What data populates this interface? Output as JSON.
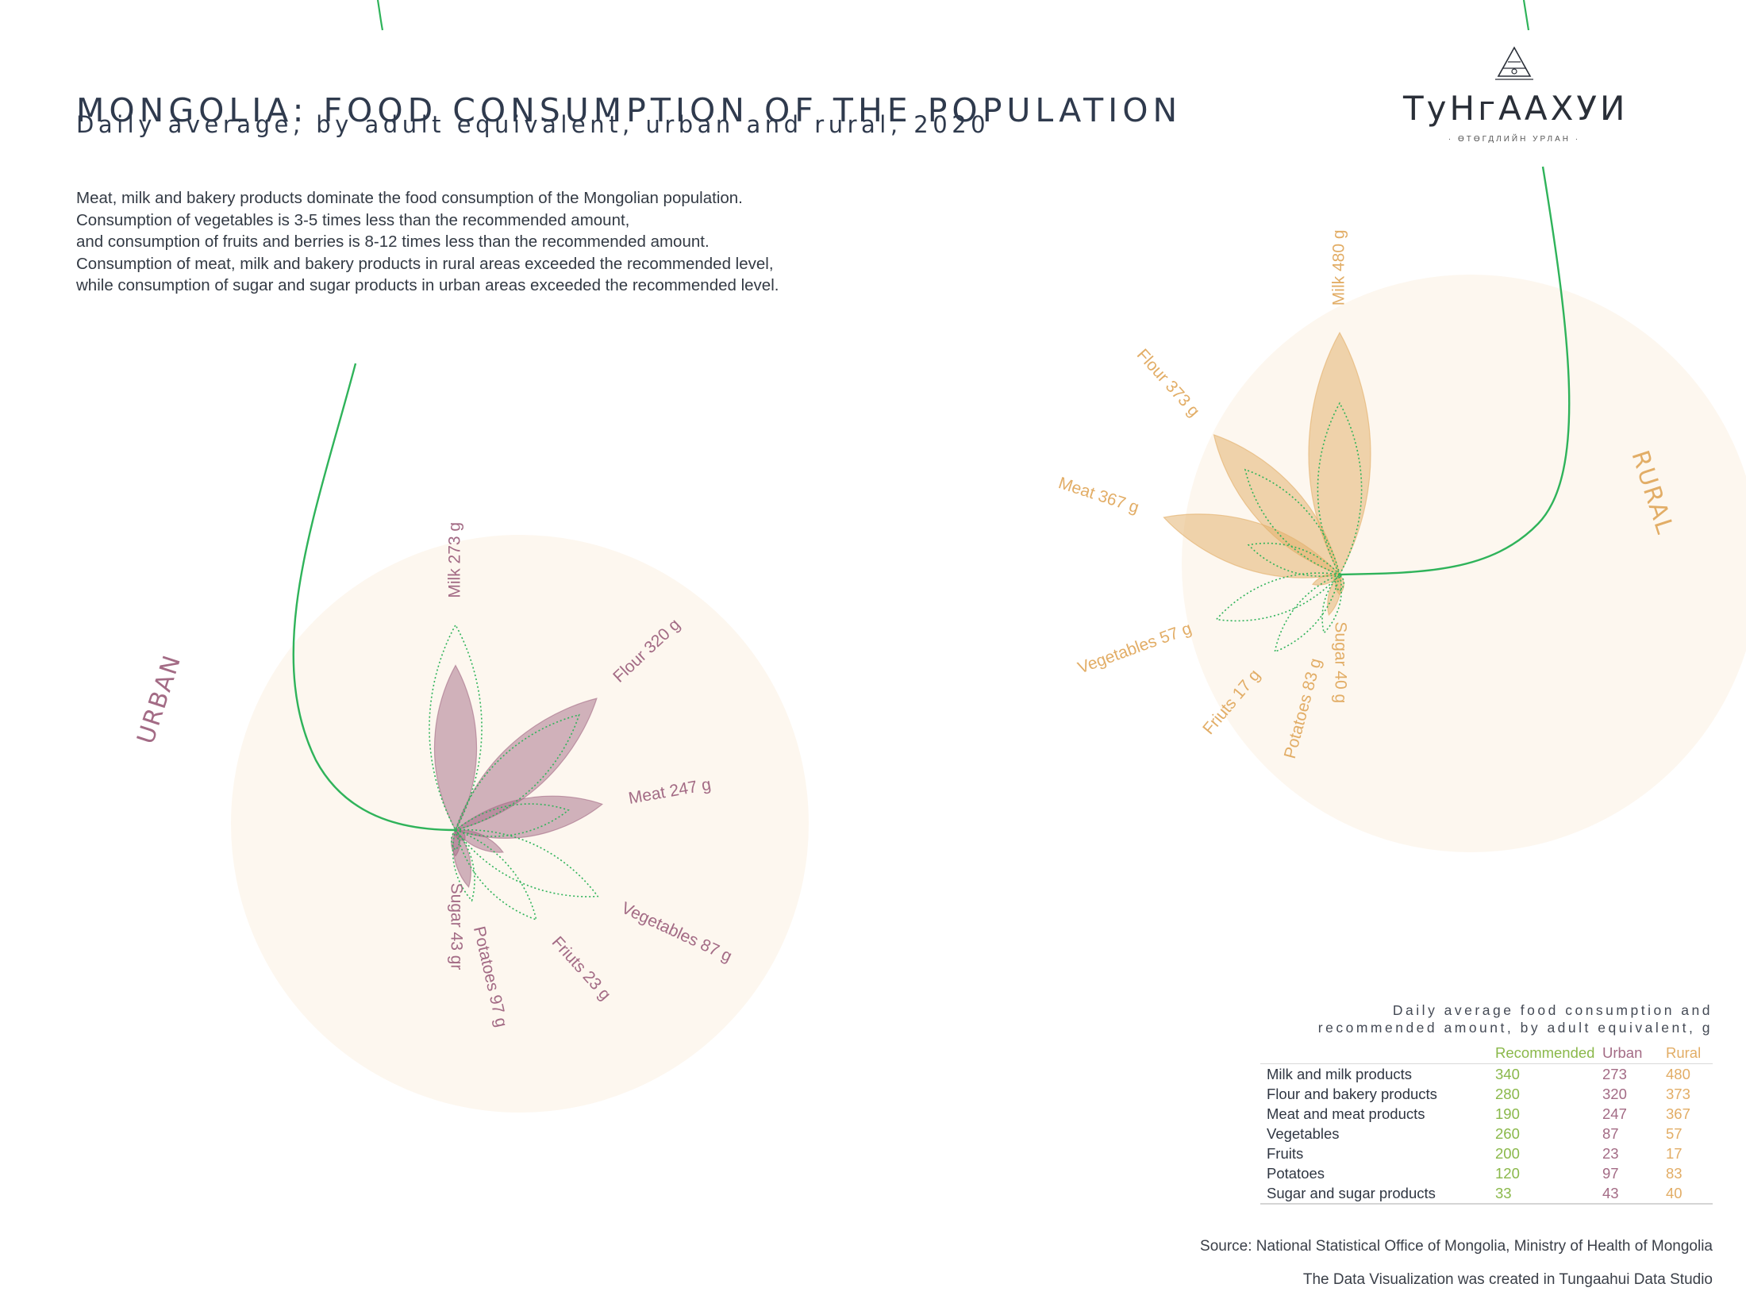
{
  "header": {
    "title": "MONGOLIA: FOOD CONSUMPTION OF THE POPULATION",
    "subtitle": "Daily average, by adult equivalent, urban and rural, 2020"
  },
  "description": [
    "Meat, milk and bakery products dominate the food consumption of the Mongolian population.",
    "Consumption of vegetables is 3-5 times less than the recommended amount,",
    "and consumption of fruits and berries is 8-12 times less than the recommended amount.",
    "Consumption of meat, milk and bakery products in rural areas exceeded the recommended level,",
    "while consumption of sugar and sugar products in urban areas exceeded the recommended level."
  ],
  "logo": {
    "text": "ТуНгААХУИ",
    "sub": "· ӨТӨГДЛИЙН УРЛАН ·"
  },
  "colors": {
    "urban": "#a36b85",
    "rural": "#e2ad66",
    "recommended": "#2fb35a",
    "halo": "#fdf7ef"
  },
  "chart_data": [
    {
      "type": "radial-petal",
      "name": "URBAN",
      "categories": [
        "Milk",
        "Flour",
        "Meat",
        "Vegetables",
        "Fruits",
        "Potatoes",
        "Sugar"
      ],
      "label_names": [
        "Milk",
        "Flour",
        "Meat",
        "Vegetables",
        "Friuts",
        "Potatoes",
        "Sugar"
      ],
      "values": [
        273,
        320,
        247,
        87,
        23,
        97,
        43
      ],
      "value_labels": [
        "273 g",
        "320 g",
        "247 g",
        "87 g",
        "23 g",
        "97 g",
        "43 gr"
      ],
      "recommended": [
        340,
        280,
        190,
        260,
        200,
        120,
        33
      ]
    },
    {
      "type": "radial-petal",
      "name": "RURAL",
      "categories": [
        "Milk",
        "Flour",
        "Meat",
        "Vegetables",
        "Fruits",
        "Potatoes",
        "Sugar"
      ],
      "label_names": [
        "Milk",
        "Flour",
        "Meat",
        "Vegetables",
        "Friuts",
        "Potatoes",
        "Sugar"
      ],
      "values": [
        480,
        373,
        367,
        57,
        17,
        83,
        40
      ],
      "value_labels": [
        "480 g",
        "373 g",
        "367 g",
        "57 g",
        "17 g",
        "83 g",
        "40 g"
      ],
      "recommended": [
        340,
        280,
        190,
        260,
        200,
        120,
        33
      ]
    }
  ],
  "table": {
    "title_line1": "Daily average food consumption and",
    "title_line2": "recommended amount, by adult equivalent, g",
    "headers": [
      "",
      "Recommended",
      "Urban",
      "Rural"
    ],
    "rows": [
      [
        "Milk and milk products",
        "340",
        "273",
        "480"
      ],
      [
        "Flour and bakery products",
        "280",
        "320",
        "373"
      ],
      [
        "Meat and meat products",
        "190",
        "247",
        "367"
      ],
      [
        "Vegetables",
        "260",
        "87",
        "57"
      ],
      [
        "Fruits",
        "200",
        "23",
        "17"
      ],
      [
        "Potatoes",
        "120",
        "97",
        "83"
      ],
      [
        "Sugar and sugar products",
        "33",
        "43",
        "40"
      ]
    ]
  },
  "footer": {
    "source": "Source: National Statistical Office of Mongolia, Ministry of Health of Mongolia",
    "credit": "The Data Visualization was created in Tungaahui Data Studio"
  }
}
